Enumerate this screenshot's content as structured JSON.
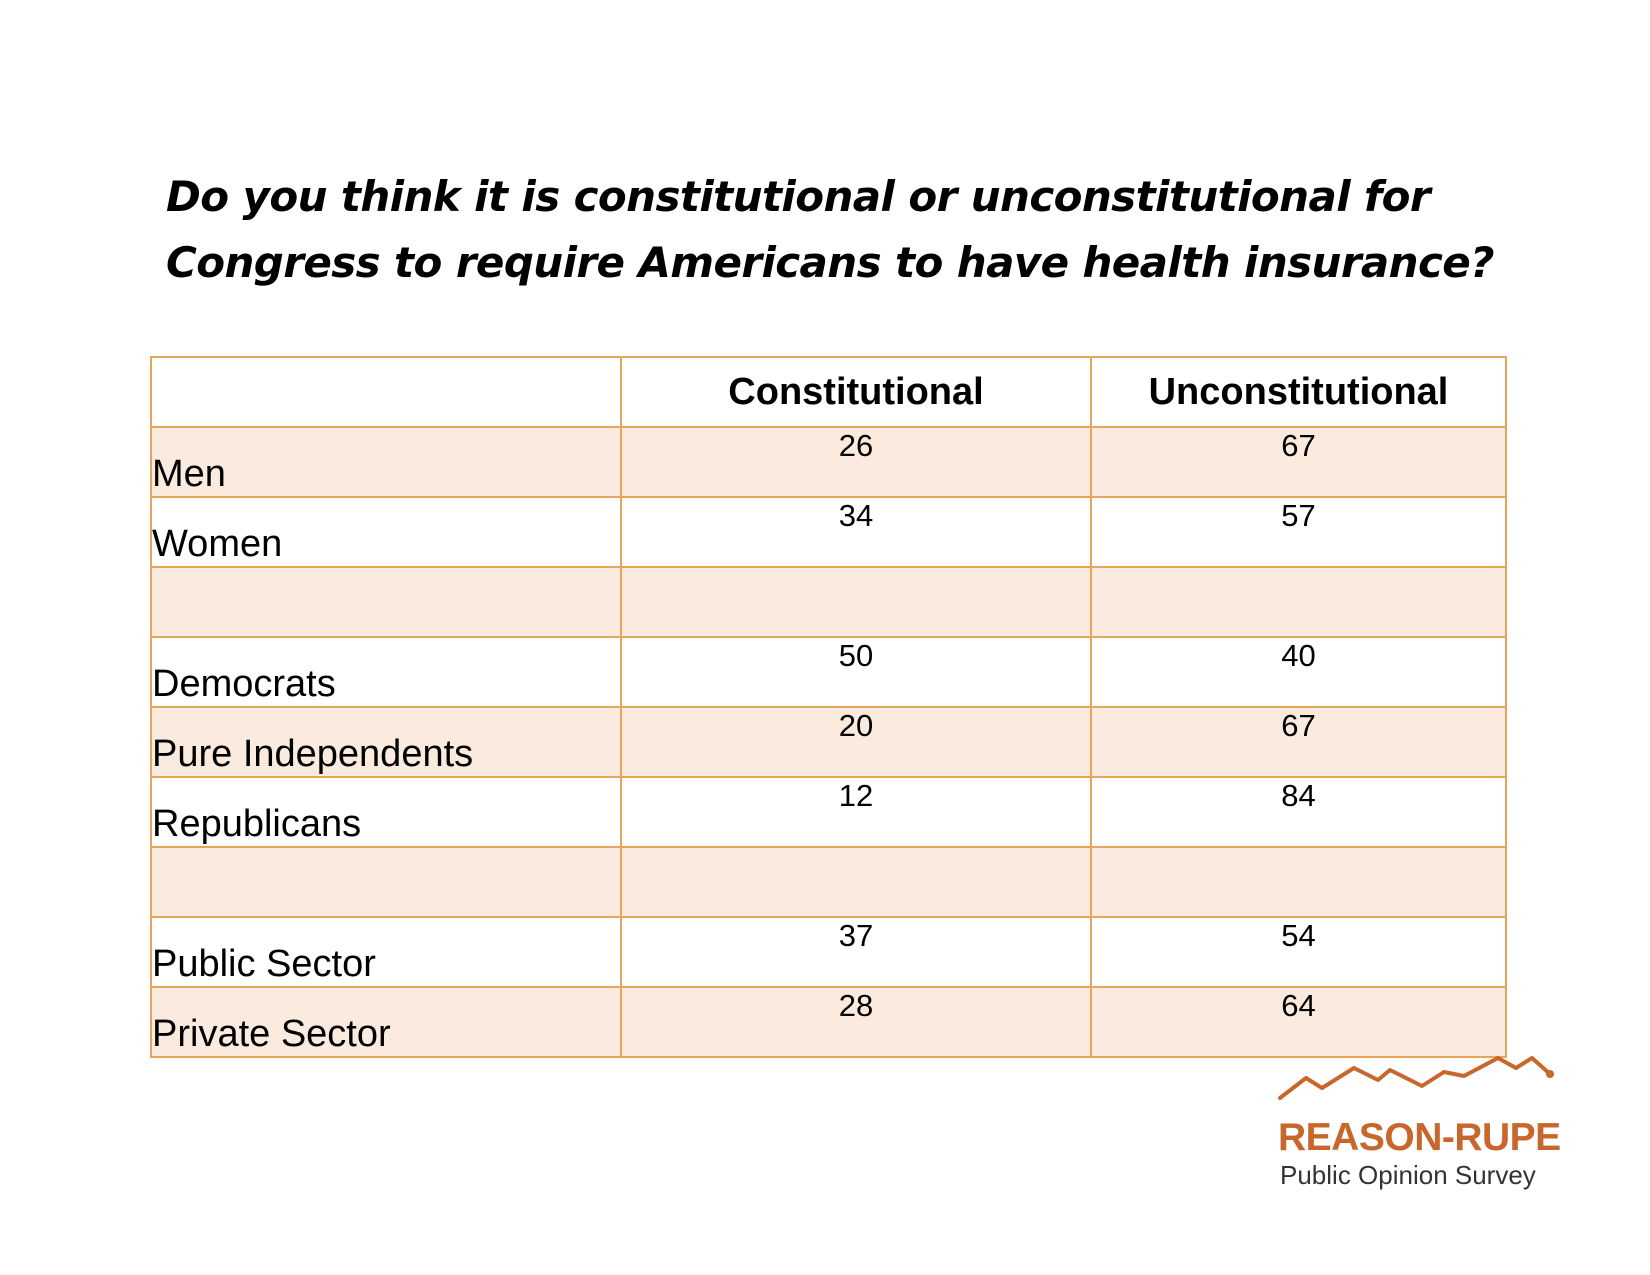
{
  "chart_data": {
    "type": "table",
    "title_lines": [
      "Do you think it is constitutional or unconstitutional for",
      "Congress to require Americans to have health insurance?"
    ],
    "columns": [
      "",
      "Constitutional",
      "Unconstitutional"
    ],
    "rows": [
      [
        "Men",
        "26",
        "67"
      ],
      [
        "Women",
        "34",
        "57"
      ],
      [
        "",
        "",
        ""
      ],
      [
        "Democrats",
        "50",
        "40"
      ],
      [
        "Pure Independents",
        "20",
        "67"
      ],
      [
        "Republicans",
        "12",
        "84"
      ],
      [
        "",
        "",
        ""
      ],
      [
        "Public Sector",
        "37",
        "54"
      ],
      [
        "Private Sector",
        "28",
        "64"
      ]
    ]
  },
  "logo": {
    "name": "REASON-RUPE",
    "tagline": "Public Opinion Survey",
    "icon": "mountain-line-icon",
    "color": "#c8662b"
  },
  "colors": {
    "border": "#e6a55b",
    "row_shade": "#fbeade",
    "header_rule": "#e0954b"
  }
}
